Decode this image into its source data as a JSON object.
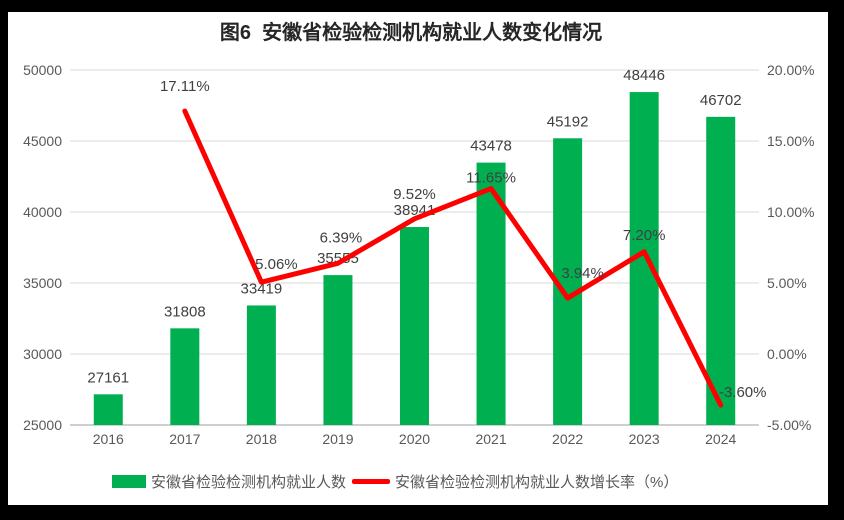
{
  "chart_data": {
    "type": "combo",
    "title": "图6  安徽省检验检测机构就业人数变化情况",
    "categories": [
      "2016",
      "2017",
      "2018",
      "2019",
      "2020",
      "2021",
      "2022",
      "2023",
      "2024"
    ],
    "series": [
      {
        "name": "安徽省检验检测机构就业人数",
        "type": "bar",
        "axis": "left",
        "color": "#00B050",
        "values": [
          27161,
          31808,
          33419,
          35555,
          38941,
          43478,
          45192,
          48446,
          46702
        ],
        "labels": [
          "27161",
          "31808",
          "33419",
          "35555",
          "38941",
          "43478",
          "45192",
          "48446",
          "46702"
        ]
      },
      {
        "name": "安徽省检验检测机构就业人数增长率（%）",
        "type": "line",
        "axis": "right",
        "color": "#FF0000",
        "values": [
          null,
          17.11,
          5.06,
          6.39,
          9.52,
          11.65,
          3.94,
          7.2,
          -3.6
        ],
        "labels": [
          null,
          "17.11%",
          "5.06%",
          "6.39%",
          "9.52%",
          "11.65%",
          "3.94%",
          "7.20%",
          "-3.60%"
        ]
      }
    ],
    "left_axis": {
      "min": 25000,
      "max": 50000,
      "step": 5000,
      "tick_labels": [
        "25000",
        "30000",
        "35000",
        "40000",
        "45000",
        "50000"
      ]
    },
    "right_axis": {
      "min": -5,
      "max": 20,
      "step": 5,
      "tick_labels": [
        "-5.00%",
        "0.00%",
        "5.00%",
        "10.00%",
        "15.00%",
        "20.00%"
      ]
    },
    "grid": true,
    "legend_position": "bottom"
  },
  "colors": {
    "bar": "#00B050",
    "line": "#FF0000",
    "gridline": "#D9D9D9",
    "axis_baseline": "#BFBFBF",
    "tick_text": "#595959",
    "data_label_text": "#404040",
    "title_text": "#262626",
    "legend_text": "#595959",
    "chart_background": "#FFFFFF",
    "frame_background": "#000000"
  }
}
